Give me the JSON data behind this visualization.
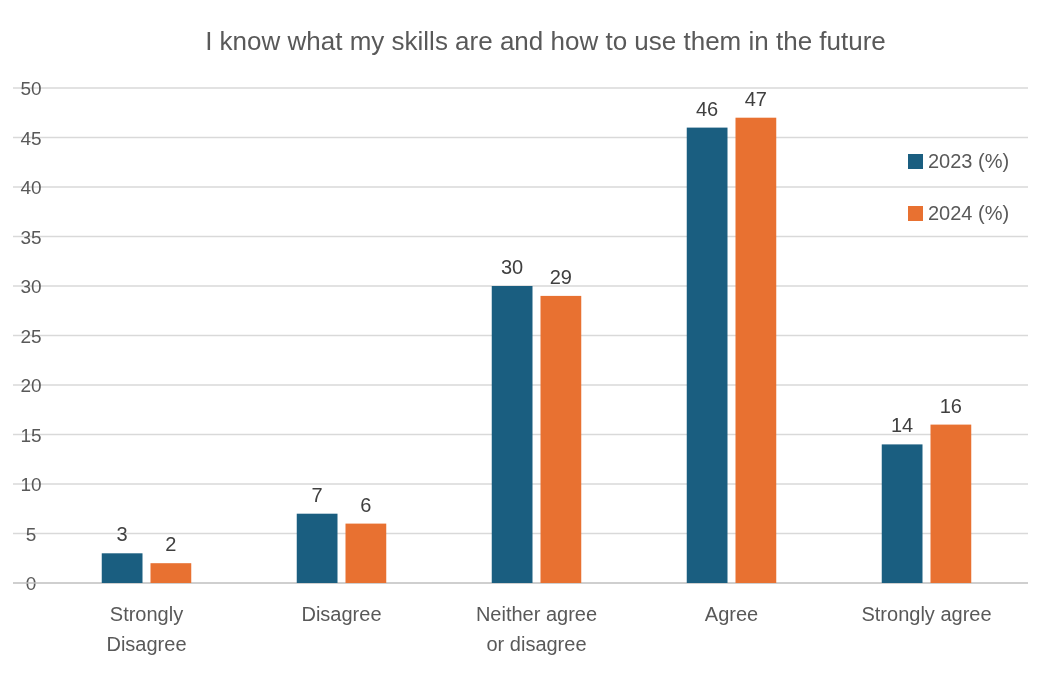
{
  "chart_data": {
    "type": "bar",
    "title": "I know what my skills are and how to use them in the future",
    "categories": [
      "Strongly Disagree",
      "Disagree",
      "Neither agree or disagree",
      "Agree",
      "Strongly agree"
    ],
    "series": [
      {
        "name": "2023 (%)",
        "color": "#1a5e80",
        "values": [
          3,
          7,
          30,
          46,
          14
        ]
      },
      {
        "name": "2024 (%)",
        "color": "#e87131",
        "values": [
          2,
          6,
          29,
          47,
          16
        ]
      }
    ],
    "data_labels": true,
    "ylim": [
      0,
      50
    ],
    "yticks": [
      0,
      5,
      10,
      15,
      20,
      25,
      30,
      35,
      40,
      45,
      50
    ],
    "grid": "y",
    "legend": "top right"
  }
}
